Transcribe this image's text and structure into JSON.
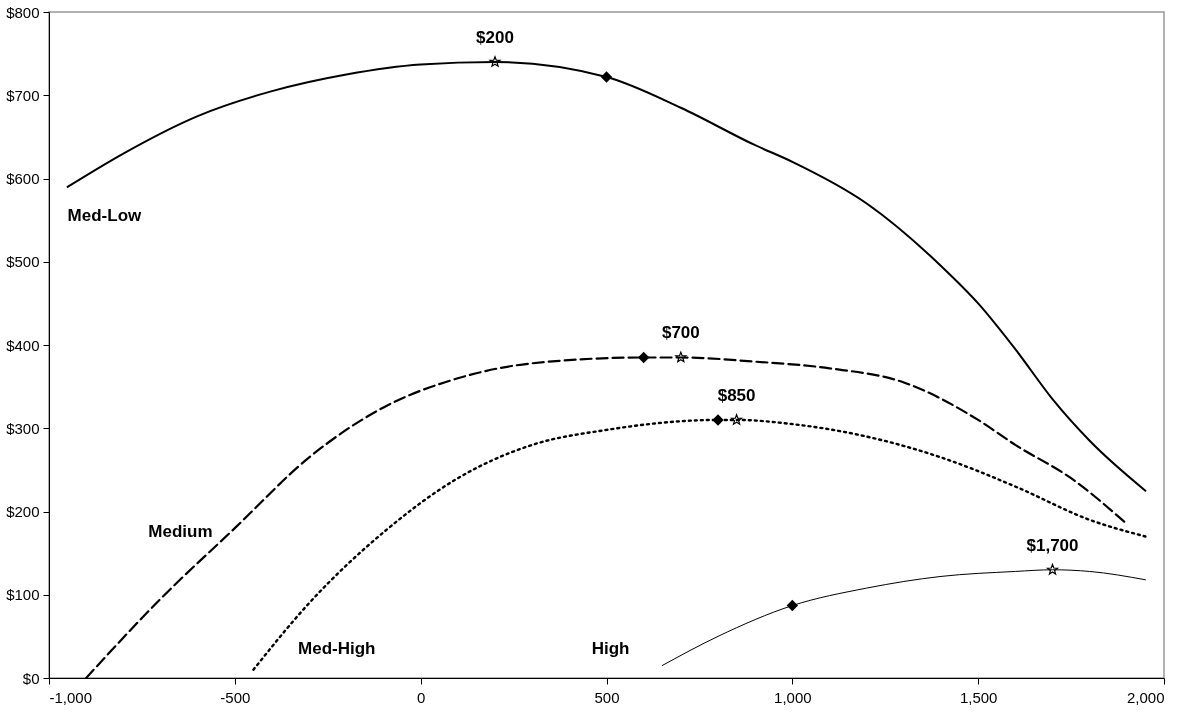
{
  "chart_data": {
    "type": "line",
    "xlim": [
      -1000,
      2000
    ],
    "xticks": [
      {
        "value": -1000,
        "label": "-1,000"
      },
      -500,
      0,
      500,
      {
        "value": 1000,
        "label": "1,000"
      },
      {
        "value": 1500,
        "label": "1,500"
      },
      {
        "value": 2000,
        "label": "2,000"
      }
    ],
    "ylim": [
      0,
      800
    ],
    "yticks": [
      {
        "value": 0,
        "label": "$0"
      },
      {
        "value": 100,
        "label": "$100"
      },
      {
        "value": 200,
        "label": "$200"
      },
      {
        "value": 300,
        "label": "$300"
      },
      {
        "value": 400,
        "label": "$400"
      },
      {
        "value": 500,
        "label": "$500"
      },
      {
        "value": 600,
        "label": "$600"
      },
      {
        "value": 700,
        "label": "$700"
      },
      {
        "value": 800,
        "label": "$800"
      }
    ],
    "grid": false,
    "series": [
      {
        "name": "Med-Low",
        "line_style": "solid",
        "color": "#000000",
        "x": [
          -950,
          -800,
          -600,
          -400,
          -200,
          0,
          200,
          500,
          700,
          900,
          1000,
          1200,
          1400,
          1500,
          1600,
          1700,
          1800,
          1950
        ],
        "values": [
          590,
          630,
          675,
          705,
          725,
          737,
          740,
          722,
          685,
          640,
          620,
          570,
          495,
          450,
          395,
          335,
          285,
          225
        ]
      },
      {
        "name": "Medium",
        "line_style": "dashed",
        "color": "#000000",
        "x": [
          -900,
          -700,
          -500,
          -300,
          -100,
          100,
          300,
          600,
          700,
          900,
          1100,
          1300,
          1500,
          1600,
          1750,
          1900
        ],
        "values": [
          0,
          95,
          180,
          265,
          325,
          360,
          378,
          385,
          385,
          380,
          372,
          355,
          310,
          280,
          240,
          185
        ]
      },
      {
        "name": "Med-High",
        "line_style": "dotted",
        "color": "#000000",
        "x": [
          -450,
          -300,
          -100,
          100,
          300,
          500,
          800,
          850,
          1000,
          1200,
          1400,
          1600,
          1800,
          1950
        ],
        "values": [
          10,
          90,
          175,
          240,
          280,
          298,
          310,
          310,
          305,
          290,
          265,
          230,
          190,
          170
        ]
      },
      {
        "name": "High",
        "line_style": "solid",
        "color": "#000000",
        "x": [
          650,
          800,
          1000,
          1200,
          1400,
          1600,
          1700,
          1800,
          1950
        ],
        "values": [
          15,
          50,
          87,
          108,
          122,
          128,
          130,
          128,
          118
        ]
      },
      {
        "type": "scatter",
        "marker": "diamond",
        "color": "#000000",
        "x": [
          500,
          600,
          800,
          1000
        ],
        "values": [
          722,
          385,
          310,
          87
        ]
      },
      {
        "type": "scatter",
        "marker": "star",
        "color": "#000000",
        "x": [
          200,
          700,
          850,
          1700
        ],
        "values": [
          740,
          385,
          310,
          130
        ]
      }
    ],
    "annotations": [
      {
        "text": "$200",
        "x": 200,
        "y": 740
      },
      {
        "text": "$700",
        "x": 700,
        "y": 385
      },
      {
        "text": "$850",
        "x": 850,
        "y": 310
      },
      {
        "text": "$1,700",
        "x": 1700,
        "y": 130
      }
    ]
  }
}
